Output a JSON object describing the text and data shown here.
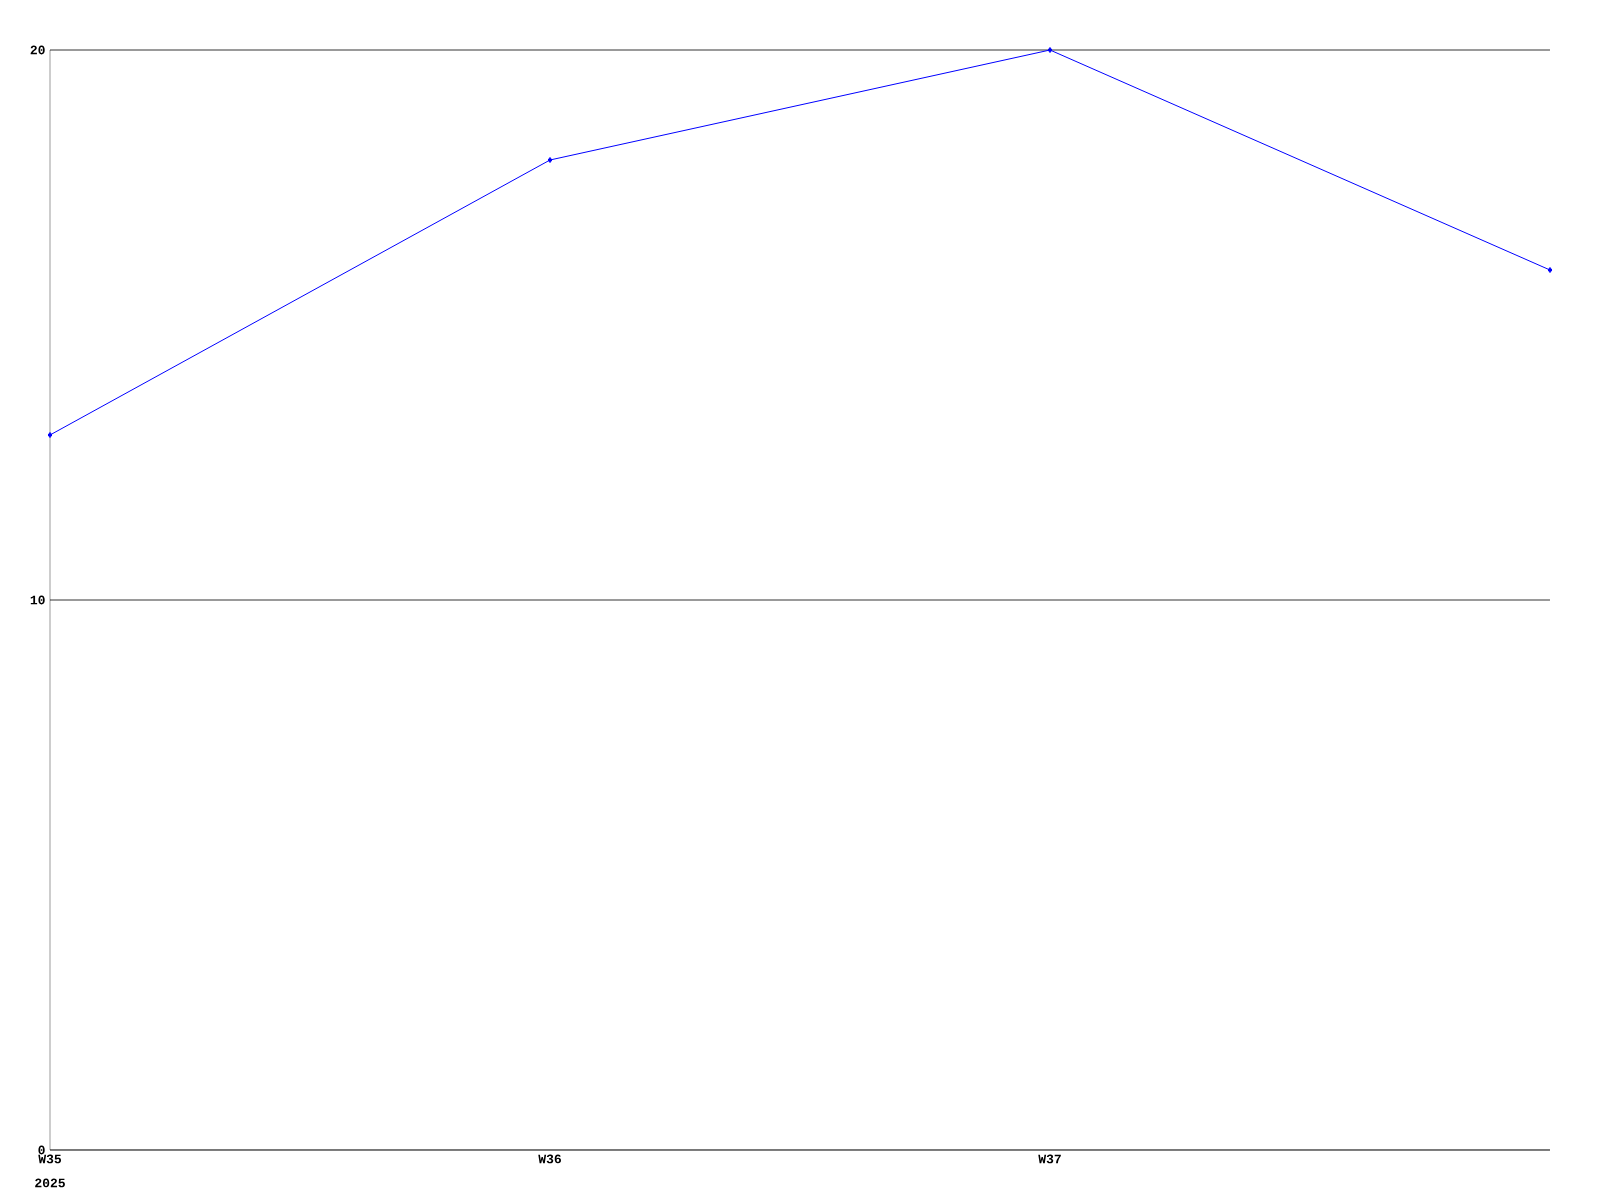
{
  "chart_data": {
    "type": "line",
    "categories": [
      "W35",
      "W36",
      "W37",
      null
    ],
    "values": [
      13,
      18,
      20,
      16
    ],
    "color": "#0000ff",
    "ylim": [
      0,
      20
    ],
    "yticks": [
      0,
      10,
      20
    ],
    "grid": "y",
    "marker": "diamond",
    "line_style": "solid",
    "annotations": [
      "2025"
    ]
  }
}
